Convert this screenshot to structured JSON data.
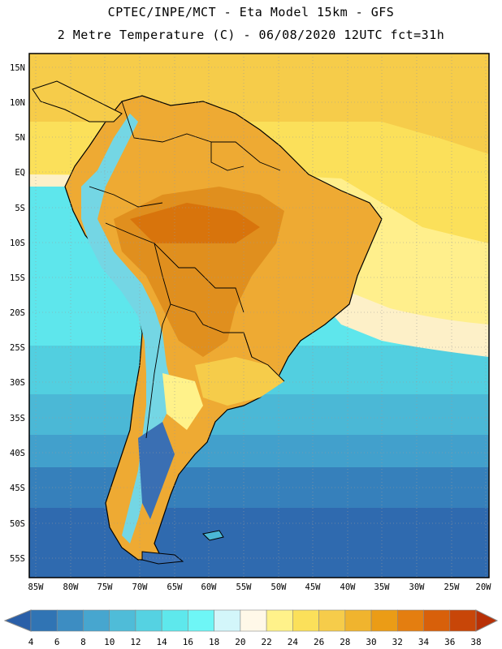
{
  "header": {
    "line1": "CPTEC/INPE/MCT -  Eta Model 15km - GFS",
    "line2": "2 Metre Temperature (C) - 06/08/2020 12UTC fct=31h"
  },
  "map": {
    "lat_labels": [
      "15N",
      "10N",
      "5N",
      "EQ",
      "5S",
      "10S",
      "15S",
      "20S",
      "25S",
      "30S",
      "35S",
      "40S",
      "45S",
      "50S",
      "55S"
    ],
    "lon_labels": [
      "85W",
      "80W",
      "75W",
      "70W",
      "65W",
      "60W",
      "55W",
      "50W",
      "45W",
      "40W",
      "35W",
      "30W",
      "25W",
      "20W"
    ]
  },
  "colorbar": {
    "labels": [
      "4",
      "6",
      "8",
      "10",
      "12",
      "14",
      "16",
      "18",
      "20",
      "22",
      "24",
      "26",
      "28",
      "30",
      "32",
      "34",
      "36",
      "38"
    ],
    "colors": [
      "#2a5fa8",
      "#3074b4",
      "#3d8dc2",
      "#47a6cf",
      "#4fbcd8",
      "#55d2e2",
      "#5ee8ec",
      "#6ef6f6",
      "#d3f6fa",
      "#fff8e8",
      "#fff28a",
      "#fbe05a",
      "#f6cc4a",
      "#f0b42e",
      "#eb9c16",
      "#e47e10",
      "#d8600a",
      "#c84608",
      "#b83006"
    ]
  }
}
